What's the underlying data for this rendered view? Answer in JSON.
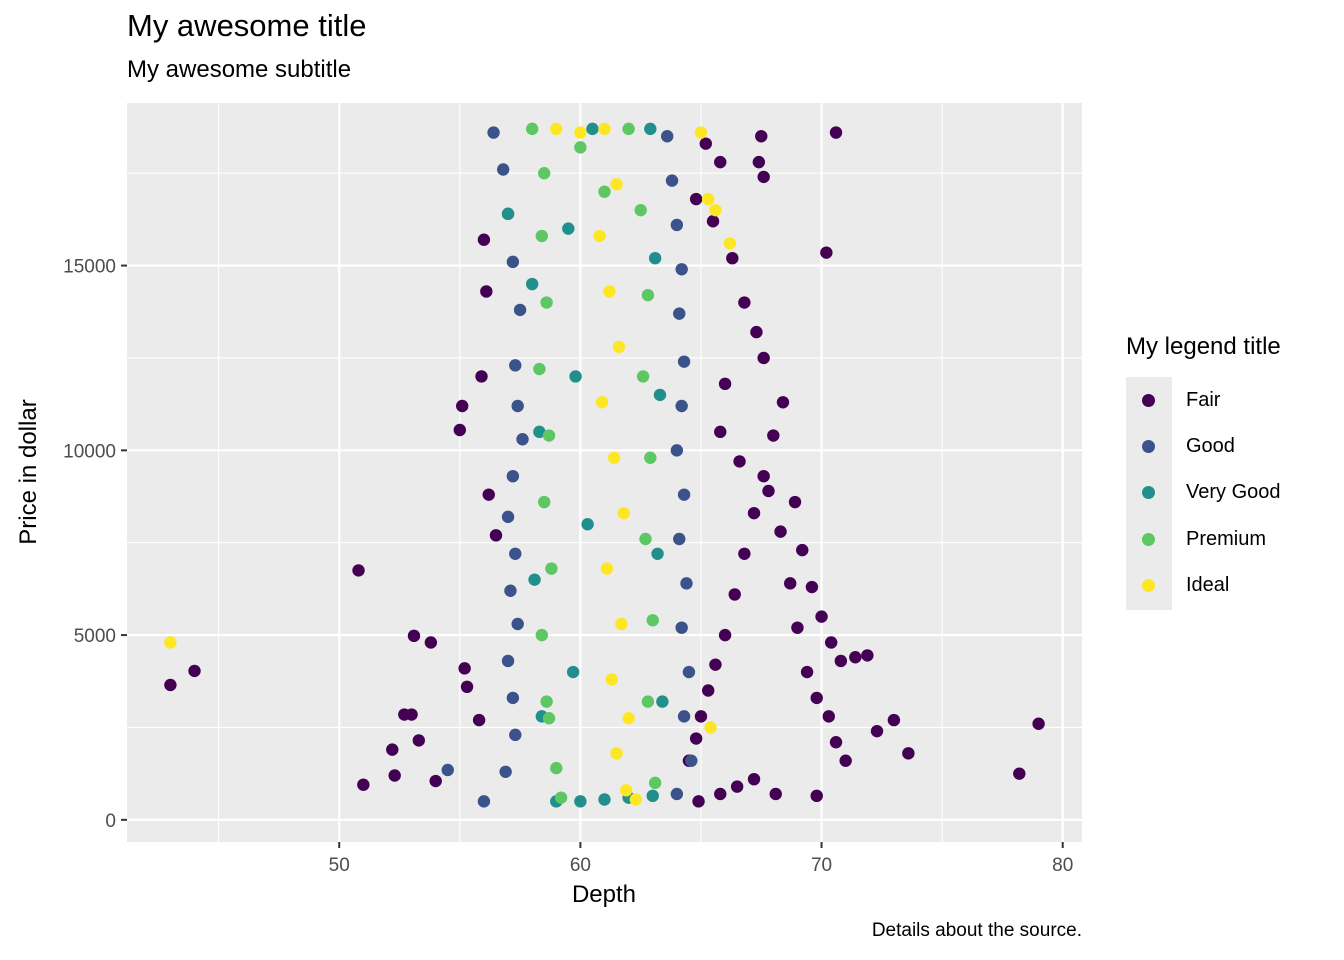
{
  "title": "My awesome title",
  "subtitle": "My awesome subtitle",
  "caption": "Details about the source.",
  "legend": {
    "title": "My legend title",
    "items": [
      {
        "label": "Fair",
        "color": "#440154"
      },
      {
        "label": "Good",
        "color": "#3B528B"
      },
      {
        "label": "Very Good",
        "color": "#21908C"
      },
      {
        "label": "Premium",
        "color": "#5DC863"
      },
      {
        "label": "Ideal",
        "color": "#FDE725"
      }
    ]
  },
  "chart_data": {
    "type": "scatter",
    "title": "My awesome title",
    "subtitle": "My awesome subtitle",
    "xlabel": "Depth",
    "ylabel": "Price in dollar",
    "xlim": [
      41.2,
      80.8
    ],
    "ylim": [
      -600,
      19400
    ],
    "x_ticks": [
      50,
      60,
      70,
      80
    ],
    "y_ticks": [
      0,
      5000,
      10000,
      15000
    ],
    "grid": true,
    "legend_position": "right",
    "series": [
      {
        "name": "Fair",
        "color": "#440154",
        "points": [
          [
            43.0,
            3650
          ],
          [
            44.0,
            4030
          ],
          [
            50.8,
            6750
          ],
          [
            51.0,
            950
          ],
          [
            52.2,
            1900
          ],
          [
            52.3,
            1200
          ],
          [
            52.7,
            2850
          ],
          [
            53.0,
            2850
          ],
          [
            53.1,
            4980
          ],
          [
            53.3,
            2150
          ],
          [
            53.8,
            4800
          ],
          [
            54.0,
            1050
          ],
          [
            55.1,
            11200
          ],
          [
            55.0,
            10550
          ],
          [
            55.2,
            4100
          ],
          [
            55.3,
            3600
          ],
          [
            55.8,
            2700
          ],
          [
            56.0,
            15700
          ],
          [
            56.2,
            8800
          ],
          [
            56.5,
            7700
          ],
          [
            56.1,
            14300
          ],
          [
            55.9,
            12000
          ],
          [
            64.5,
            1600
          ],
          [
            64.8,
            2200
          ],
          [
            65.0,
            2800
          ],
          [
            65.3,
            3500
          ],
          [
            65.6,
            4200
          ],
          [
            66.0,
            5000
          ],
          [
            66.4,
            6100
          ],
          [
            66.8,
            7200
          ],
          [
            67.2,
            8300
          ],
          [
            67.6,
            9300
          ],
          [
            68.0,
            10400
          ],
          [
            68.4,
            11300
          ],
          [
            68.9,
            8600
          ],
          [
            69.2,
            7300
          ],
          [
            69.6,
            6300
          ],
          [
            70.0,
            5500
          ],
          [
            70.4,
            4800
          ],
          [
            70.8,
            4300
          ],
          [
            71.4,
            4400
          ],
          [
            71.9,
            4450
          ],
          [
            72.3,
            2400
          ],
          [
            73.0,
            2700
          ],
          [
            73.6,
            1800
          ],
          [
            78.2,
            1250
          ],
          [
            79.0,
            2600
          ],
          [
            70.6,
            18600
          ],
          [
            70.2,
            15350
          ],
          [
            67.5,
            18500
          ],
          [
            67.4,
            17800
          ],
          [
            67.6,
            17400
          ],
          [
            65.2,
            18300
          ],
          [
            65.8,
            17800
          ],
          [
            64.8,
            16800
          ],
          [
            65.5,
            16200
          ],
          [
            66.3,
            15200
          ],
          [
            66.8,
            14000
          ],
          [
            67.3,
            13200
          ],
          [
            67.6,
            12500
          ],
          [
            66.0,
            11800
          ],
          [
            65.8,
            10500
          ],
          [
            66.6,
            9700
          ],
          [
            67.8,
            8900
          ],
          [
            68.3,
            7800
          ],
          [
            68.7,
            6400
          ],
          [
            69.0,
            5200
          ],
          [
            69.4,
            4000
          ],
          [
            69.8,
            3300
          ],
          [
            70.3,
            2800
          ],
          [
            70.6,
            2100
          ],
          [
            71.0,
            1600
          ],
          [
            69.8,
            650
          ],
          [
            68.1,
            700
          ],
          [
            67.2,
            1100
          ],
          [
            66.5,
            900
          ],
          [
            65.8,
            700
          ],
          [
            64.9,
            500
          ]
        ]
      },
      {
        "name": "Good",
        "color": "#3B528B",
        "points": [
          [
            54.5,
            1350
          ],
          [
            56.0,
            500
          ],
          [
            56.4,
            18600
          ],
          [
            56.8,
            17600
          ],
          [
            57.0,
            16400
          ],
          [
            57.2,
            15100
          ],
          [
            57.5,
            13800
          ],
          [
            57.3,
            12300
          ],
          [
            57.4,
            11200
          ],
          [
            57.6,
            10300
          ],
          [
            57.2,
            9300
          ],
          [
            57.0,
            8200
          ],
          [
            57.3,
            7200
          ],
          [
            57.1,
            6200
          ],
          [
            57.4,
            5300
          ],
          [
            57.0,
            4300
          ],
          [
            57.2,
            3300
          ],
          [
            57.3,
            2300
          ],
          [
            56.9,
            1300
          ],
          [
            63.6,
            18500
          ],
          [
            63.8,
            17300
          ],
          [
            64.0,
            16100
          ],
          [
            64.2,
            14900
          ],
          [
            64.1,
            13700
          ],
          [
            64.3,
            12400
          ],
          [
            64.2,
            11200
          ],
          [
            64.0,
            10000
          ],
          [
            64.3,
            8800
          ],
          [
            64.1,
            7600
          ],
          [
            64.4,
            6400
          ],
          [
            64.2,
            5200
          ],
          [
            64.5,
            4000
          ],
          [
            64.3,
            2800
          ],
          [
            64.6,
            1600
          ],
          [
            64.0,
            700
          ]
        ]
      },
      {
        "name": "Very Good",
        "color": "#21908C",
        "points": [
          [
            57.0,
            16400
          ],
          [
            58.0,
            14500
          ],
          [
            58.3,
            10500
          ],
          [
            58.1,
            6500
          ],
          [
            58.4,
            2800
          ],
          [
            59.0,
            500
          ],
          [
            60.0,
            500
          ],
          [
            61.0,
            550
          ],
          [
            62.0,
            600
          ],
          [
            63.0,
            650
          ],
          [
            63.4,
            3200
          ],
          [
            63.2,
            7200
          ],
          [
            63.3,
            11500
          ],
          [
            63.1,
            15200
          ],
          [
            62.9,
            18700
          ],
          [
            60.5,
            18700
          ],
          [
            59.5,
            16000
          ],
          [
            59.8,
            12000
          ],
          [
            60.3,
            8000
          ],
          [
            59.7,
            4000
          ]
        ]
      },
      {
        "name": "Premium",
        "color": "#5DC863",
        "points": [
          [
            58.0,
            18700
          ],
          [
            58.5,
            17500
          ],
          [
            58.4,
            15800
          ],
          [
            58.6,
            14000
          ],
          [
            58.3,
            12200
          ],
          [
            58.7,
            10400
          ],
          [
            58.5,
            8600
          ],
          [
            58.8,
            6800
          ],
          [
            58.4,
            5000
          ],
          [
            58.6,
            3200
          ],
          [
            58.7,
            2750
          ],
          [
            59.0,
            1400
          ],
          [
            59.2,
            600
          ],
          [
            62.0,
            18700
          ],
          [
            62.5,
            16500
          ],
          [
            62.8,
            14200
          ],
          [
            62.6,
            12000
          ],
          [
            62.9,
            9800
          ],
          [
            62.7,
            7600
          ],
          [
            63.0,
            5400
          ],
          [
            62.8,
            3200
          ],
          [
            63.1,
            1000
          ],
          [
            60.0,
            18200
          ],
          [
            61.0,
            17000
          ]
        ]
      },
      {
        "name": "Ideal",
        "color": "#FDE725",
        "points": [
          [
            43.0,
            4800
          ],
          [
            59.0,
            18700
          ],
          [
            60.0,
            18600
          ],
          [
            61.0,
            18700
          ],
          [
            61.5,
            17200
          ],
          [
            60.8,
            15800
          ],
          [
            61.2,
            14300
          ],
          [
            61.6,
            12800
          ],
          [
            60.9,
            11300
          ],
          [
            61.4,
            9800
          ],
          [
            61.8,
            8300
          ],
          [
            61.1,
            6800
          ],
          [
            61.7,
            5300
          ],
          [
            61.3,
            3800
          ],
          [
            62.0,
            2750
          ],
          [
            61.5,
            1800
          ],
          [
            61.9,
            800
          ],
          [
            62.3,
            550
          ],
          [
            65.0,
            18600
          ],
          [
            65.3,
            16800
          ],
          [
            65.6,
            16500
          ],
          [
            66.2,
            15600
          ],
          [
            65.4,
            2500
          ]
        ]
      }
    ]
  }
}
